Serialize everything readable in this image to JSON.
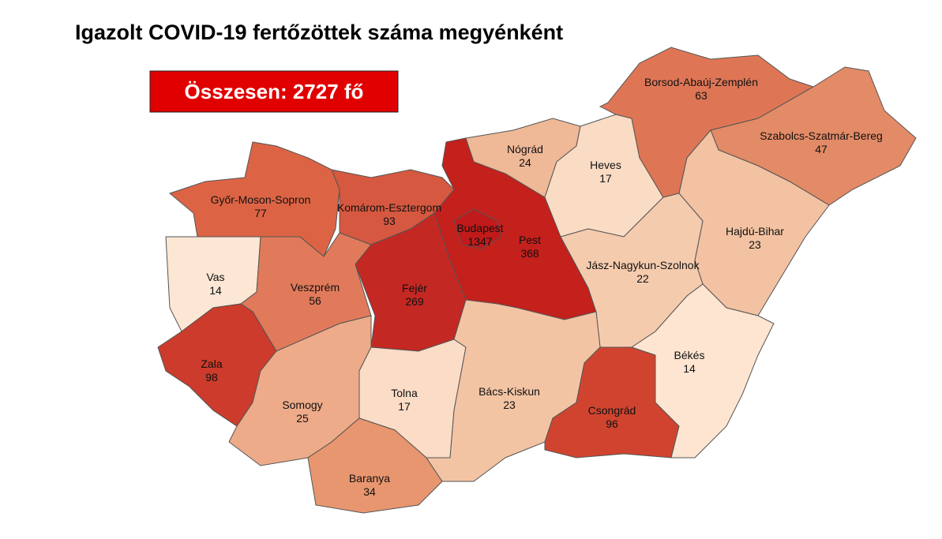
{
  "title": "Igazolt COVID-19 fertőzöttek száma megyénként",
  "total": "Összesen: 2727 fő",
  "regions": [
    {
      "name": "Győr-Moson-Sopron",
      "value": 77,
      "color": "#dc6445"
    },
    {
      "name": "Komárom-Esztergom",
      "value": 93,
      "color": "#d65840"
    },
    {
      "name": "Vas",
      "value": 14,
      "color": "#fce6d4"
    },
    {
      "name": "Veszprém",
      "value": 56,
      "color": "#e07a5b"
    },
    {
      "name": "Zala",
      "value": 98,
      "color": "#cc3b2b"
    },
    {
      "name": "Fejér",
      "value": 269,
      "color": "#c42822"
    },
    {
      "name": "Somogy",
      "value": 25,
      "color": "#eeab89"
    },
    {
      "name": "Tolna",
      "value": 17,
      "color": "#fbdcc6"
    },
    {
      "name": "Baranya",
      "value": 34,
      "color": "#e8966f"
    },
    {
      "name": "Pest",
      "value": 368,
      "color": "#c4201c"
    },
    {
      "name": "Budapest",
      "value": 1347,
      "color": "#c01a1a"
    },
    {
      "name": "Nógrád",
      "value": 24,
      "color": "#efb896"
    },
    {
      "name": "Heves",
      "value": 17,
      "color": "#fadbc3"
    },
    {
      "name": "Borsod-Abaúj-Zemplén",
      "value": 63,
      "color": "#de7656"
    },
    {
      "name": "Szabolcs-Szatmár-Bereg",
      "value": 47,
      "color": "#e38a66"
    },
    {
      "name": "Hajdú-Bihar",
      "value": 23,
      "color": "#f2c2a2"
    },
    {
      "name": "Jász-Nagykun-Szolnok",
      "value": 22,
      "color": "#f5cbae"
    },
    {
      "name": "Bács-Kiskun",
      "value": 23,
      "color": "#f3c4a4"
    },
    {
      "name": "Csongrád",
      "value": 96,
      "color": "#d0442f"
    },
    {
      "name": "Békés",
      "value": 14,
      "color": "#fde5d1"
    }
  ]
}
